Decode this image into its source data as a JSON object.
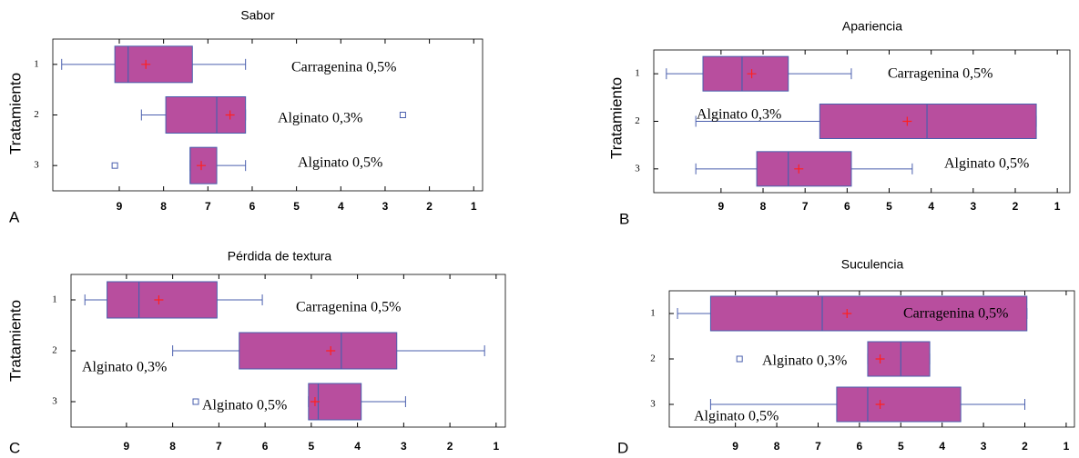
{
  "chart_data": [
    {
      "type": "box",
      "panel": "A",
      "title": "Sabor",
      "y_label": "Tratamiento",
      "categories": [
        "1",
        "2",
        "3"
      ],
      "labels": [
        "Carragenina 0,5%",
        "Alginato 0,3%",
        "Alginato 0,5%"
      ],
      "xlim": [
        10.5,
        0.8
      ],
      "xticks": [
        9,
        8,
        7,
        6,
        5,
        4,
        3,
        2,
        1
      ],
      "box_color": "#b84e9e",
      "line_color": "#4a5fae",
      "mean_color": "#ff2020",
      "boxes": [
        {
          "min": 6.15,
          "q1": 7.35,
          "median": 8.8,
          "q3": 9.1,
          "max": 10.3,
          "mean": 8.4,
          "outliers": []
        },
        {
          "min": 6.15,
          "q1": 6.15,
          "median": 6.8,
          "q3": 7.95,
          "max": 8.5,
          "mean": 6.5,
          "outliers": [
            2.6
          ]
        },
        {
          "min": 6.15,
          "q1": 6.8,
          "median": 7.4,
          "q3": 7.4,
          "max": 7.4,
          "mean": 7.15,
          "outliers": [
            9.1
          ]
        }
      ]
    },
    {
      "type": "box",
      "panel": "B",
      "title": "Apariencia",
      "y_label": "Tratamiento",
      "categories": [
        "1",
        "2",
        "3"
      ],
      "labels": [
        "Carragenina 0,5%",
        "Alginato 0,3%",
        "Alginato 0,5%"
      ],
      "xlim": [
        10.6,
        0.7
      ],
      "xticks": [
        9,
        8,
        7,
        6,
        5,
        4,
        3,
        2,
        1
      ],
      "box_color": "#b84e9e",
      "line_color": "#4a5fae",
      "mean_color": "#ff2020",
      "boxes": [
        {
          "min": 5.9,
          "q1": 7.4,
          "median": 8.5,
          "q3": 9.43,
          "max": 10.3,
          "mean": 8.27,
          "outliers": []
        },
        {
          "min": 1.5,
          "q1": 1.5,
          "median": 4.1,
          "q3": 6.65,
          "max": 9.6,
          "mean": 4.57,
          "outliers": []
        },
        {
          "min": 4.45,
          "q1": 5.9,
          "median": 7.4,
          "q3": 8.15,
          "max": 9.6,
          "mean": 7.15,
          "outliers": []
        }
      ]
    },
    {
      "type": "box",
      "panel": "C",
      "title": "Pérdida de textura",
      "y_label": "Tratamiento",
      "categories": [
        "1",
        "2",
        "3"
      ],
      "labels": [
        "Carragenina 0,5%",
        "Alginato 0,3%",
        "Alginato 0,5%"
      ],
      "xlim": [
        10.2,
        0.8
      ],
      "xticks": [
        9,
        8,
        7,
        6,
        5,
        4,
        3,
        2,
        1
      ],
      "box_color": "#b84e9e",
      "line_color": "#4a5fae",
      "mean_color": "#ff2020",
      "boxes": [
        {
          "min": 6.06,
          "q1": 7.04,
          "median": 8.73,
          "q3": 9.42,
          "max": 9.9,
          "mean": 8.3,
          "outliers": []
        },
        {
          "min": 1.25,
          "q1": 3.15,
          "median": 4.35,
          "q3": 6.56,
          "max": 8.0,
          "mean": 4.58,
          "outliers": []
        },
        {
          "min": 2.96,
          "q1": 3.92,
          "median": 4.85,
          "q3": 5.06,
          "max": 5.06,
          "mean": 4.92,
          "outliers": [
            7.5
          ]
        }
      ]
    },
    {
      "type": "box",
      "panel": "D",
      "title": "Suculencia",
      "categories": [
        "1",
        "2",
        "3"
      ],
      "labels": [
        "Carragenina 0,5%",
        "Alginato 0,3%",
        "Alginato 0,5%"
      ],
      "xlim": [
        10.6,
        0.8
      ],
      "xticks": [
        9,
        8,
        7,
        6,
        5,
        4,
        3,
        2,
        1
      ],
      "box_color": "#b84e9e",
      "line_color": "#4a5fae",
      "mean_color": "#ff2020",
      "boxes": [
        {
          "min": 1.95,
          "q1": 1.95,
          "median": 6.9,
          "q3": 9.6,
          "max": 10.4,
          "mean": 6.3,
          "outliers": []
        },
        {
          "min": 4.3,
          "q1": 4.3,
          "median": 5.0,
          "q3": 5.8,
          "max": 5.8,
          "mean": 5.5,
          "outliers": [
            8.9
          ]
        },
        {
          "min": 2.0,
          "q1": 3.55,
          "median": 5.8,
          "q3": 6.55,
          "max": 9.6,
          "mean": 5.5,
          "outliers": []
        }
      ]
    }
  ]
}
